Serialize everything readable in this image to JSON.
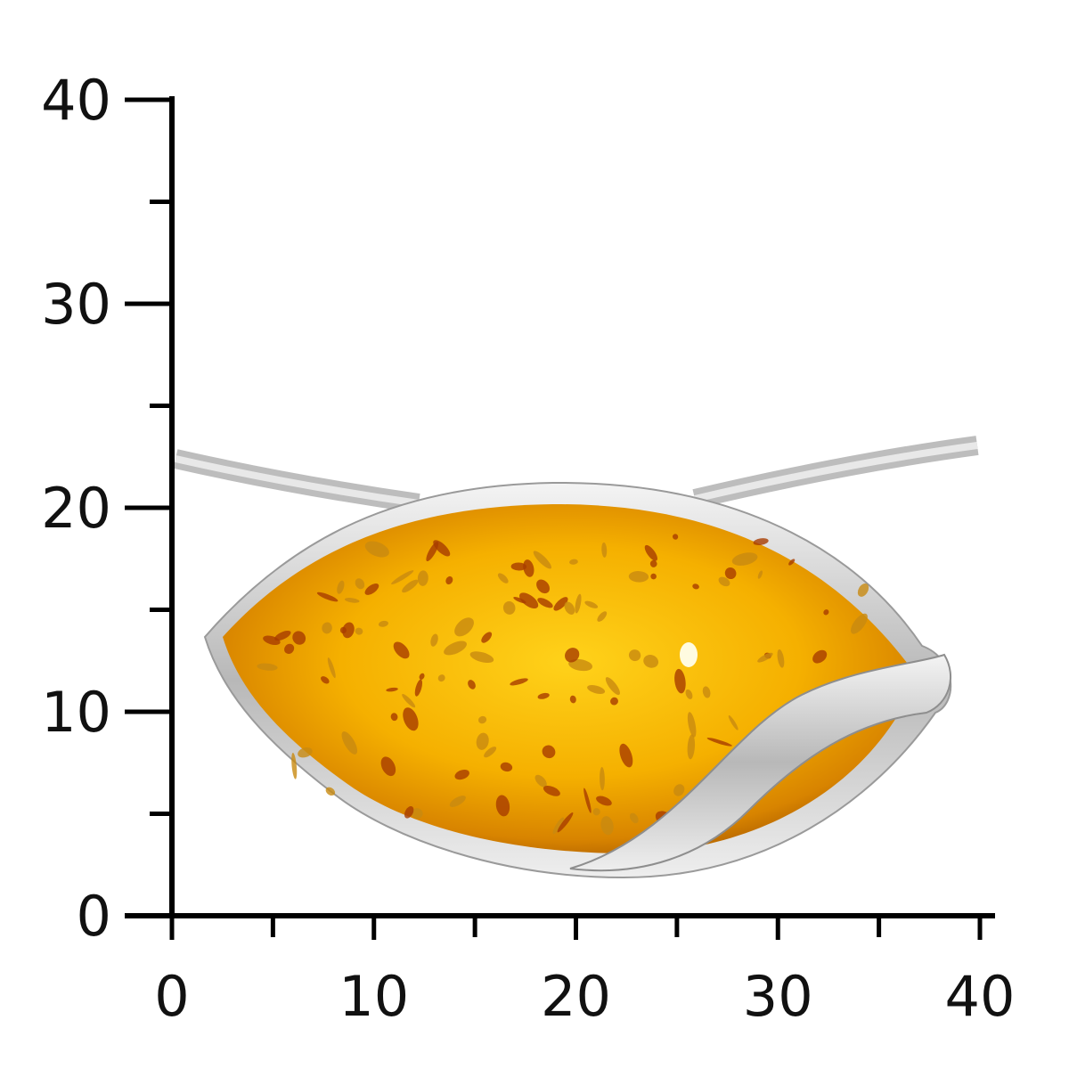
{
  "scale": {
    "unit_step_major": 10,
    "unit_step_minor": 5,
    "x_range": [
      0,
      40
    ],
    "y_range": [
      0,
      40
    ],
    "x_tick_labels": [
      "0",
      "10",
      "20",
      "30",
      "40"
    ],
    "y_tick_labels": [
      "0",
      "10",
      "20",
      "30",
      "40"
    ],
    "axis_color": "#000000"
  },
  "photo": {
    "subject": "amber-pendant-icon",
    "amber_color": "#f0a800",
    "silver_color": "#c8c8c8"
  }
}
